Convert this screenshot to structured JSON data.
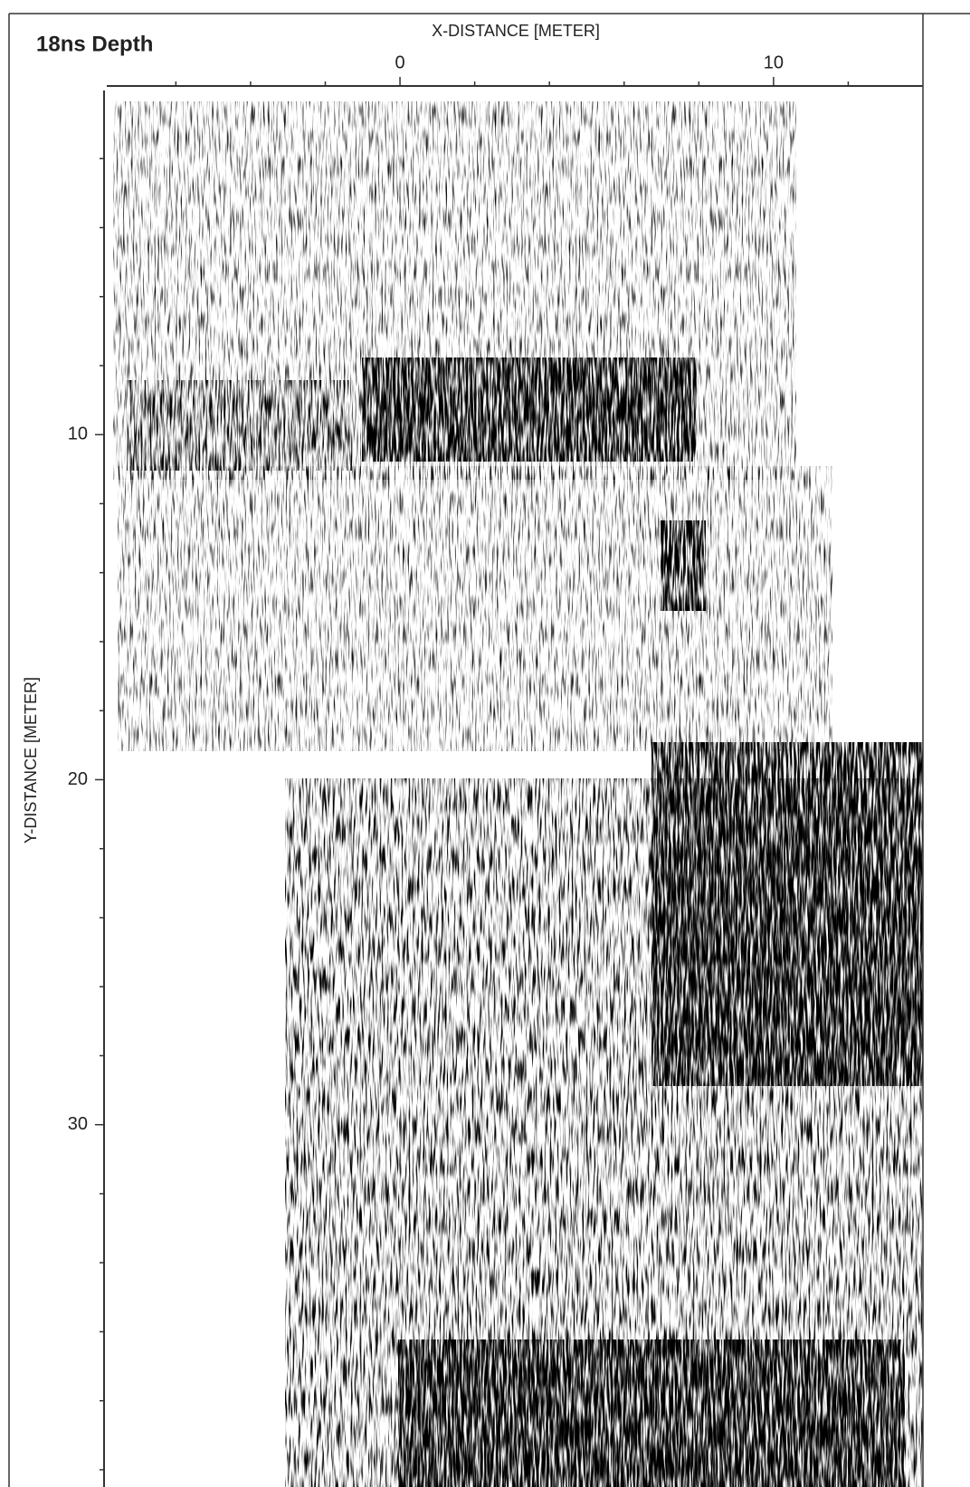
{
  "chart_data": {
    "type": "image",
    "title": "18ns Depth",
    "x_label": "X-DISTANCE [METER]",
    "y_label": "Y-DISTANCE [METER]",
    "xlim": [
      -7.85,
      14
    ],
    "ylim": [
      0,
      40.5
    ],
    "xticks": [
      0,
      10
    ],
    "yticks": [
      10,
      20,
      30
    ],
    "xminorticks": [
      -6,
      -4,
      -2,
      2,
      4,
      6,
      8,
      12
    ],
    "yminorticks": [
      2,
      4,
      6,
      8,
      12,
      14,
      16,
      18,
      22,
      24,
      26,
      28,
      32,
      34,
      36,
      38,
      40
    ]
  }
}
